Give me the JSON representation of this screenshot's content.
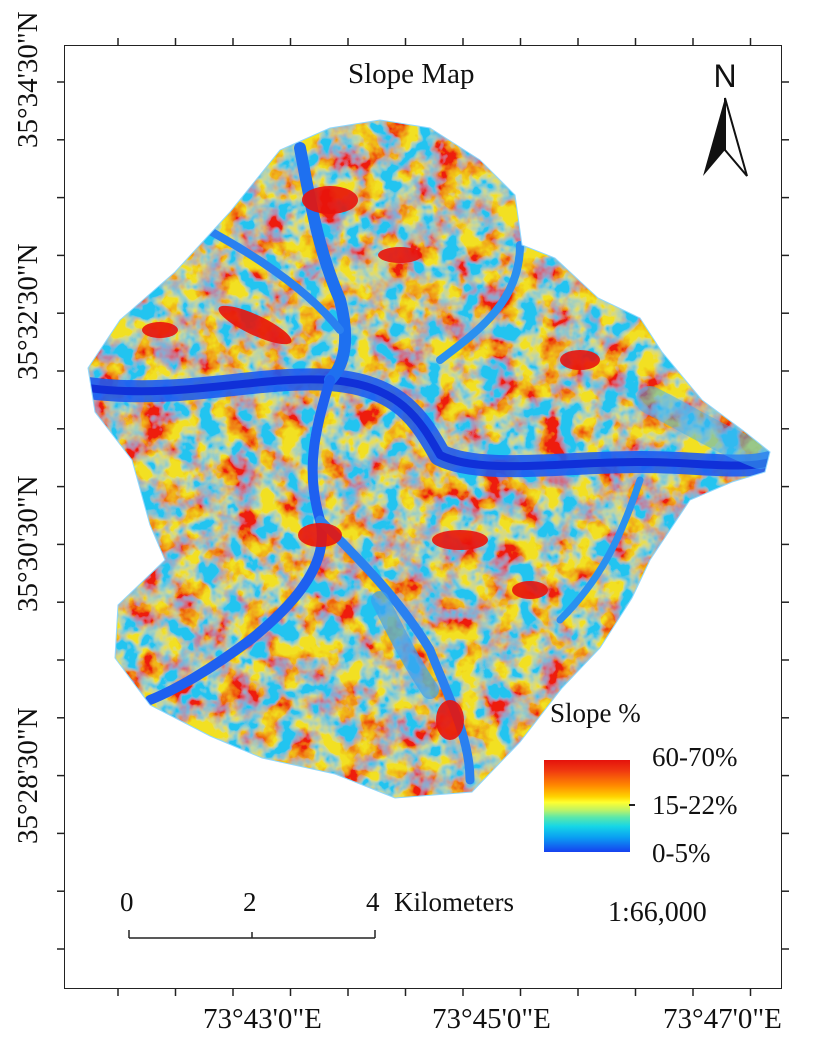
{
  "map": {
    "title": "Slope Map",
    "north_label": "N",
    "latitude_labels": [
      "35°34'30\"N",
      "35°32'30\"N",
      "35°30'30\"N",
      "35°28'30\"N"
    ],
    "longitude_labels": [
      "73°43'0\"E",
      "73°45'0\"E",
      "73°47'0\"E"
    ]
  },
  "legend": {
    "title": "Slope %",
    "high_label": "60-70%",
    "mid_label": "15-22%",
    "low_label": "0-5%",
    "colors": [
      "#e4120c",
      "#ff8a00",
      "#ffff30",
      "#16d6e6",
      "#1640f0"
    ]
  },
  "scale": {
    "ticks": [
      "0",
      "2",
      "4"
    ],
    "units": "Kilometers",
    "ratio": "1:66,000"
  }
}
